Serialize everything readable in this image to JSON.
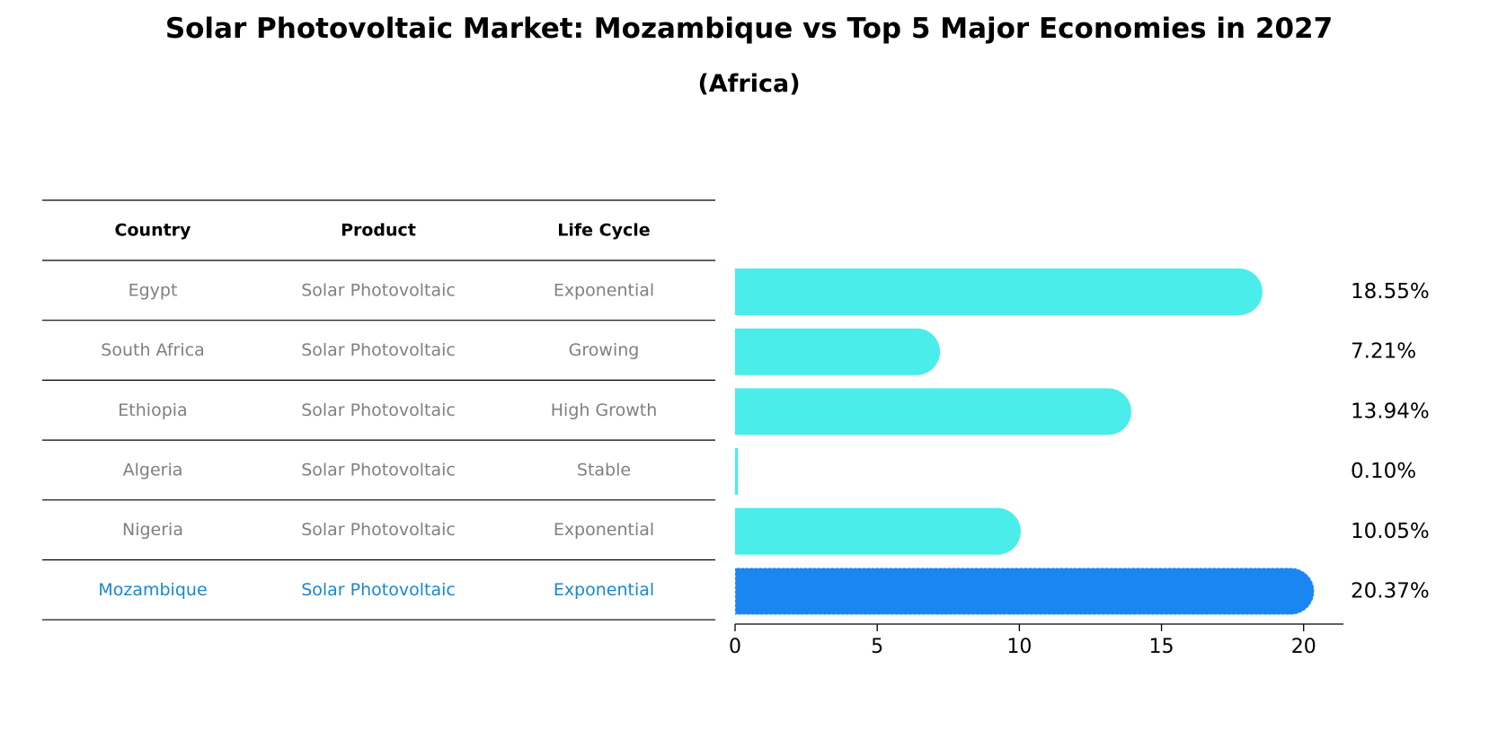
{
  "title": "Solar Photovoltaic Market: Mozambique vs Top 5 Major Economies in 2027",
  "subtitle": "(Africa)",
  "colors": {
    "bar": "#4BEDEA",
    "highlight_bar": "#1A86F2",
    "table_text": "#808080",
    "highlight_text": "#1A86D0",
    "rule": "#000000"
  },
  "table": {
    "headers": [
      "Country",
      "Product",
      "Life Cycle"
    ],
    "rows": [
      {
        "country": "Egypt",
        "product": "Solar Photovoltaic",
        "life_cycle": "Exponential",
        "highlight": false
      },
      {
        "country": "South Africa",
        "product": "Solar Photovoltaic",
        "life_cycle": "Growing",
        "highlight": false
      },
      {
        "country": "Ethiopia",
        "product": "Solar Photovoltaic",
        "life_cycle": "High Growth",
        "highlight": false
      },
      {
        "country": "Algeria",
        "product": "Solar Photovoltaic",
        "life_cycle": "Stable",
        "highlight": false
      },
      {
        "country": "Nigeria",
        "product": "Solar Photovoltaic",
        "life_cycle": "Exponential",
        "highlight": false
      },
      {
        "country": "Mozambique",
        "product": "Solar Photovoltaic",
        "life_cycle": "Exponential",
        "highlight": true
      }
    ]
  },
  "chart_data": {
    "type": "bar",
    "orientation": "horizontal",
    "title": "Solar Photovoltaic Market: Mozambique vs Top 5 Major Economies in 2027",
    "subtitle": "(Africa)",
    "categories": [
      "Egypt",
      "South Africa",
      "Ethiopia",
      "Algeria",
      "Nigeria",
      "Mozambique"
    ],
    "values": [
      18.55,
      7.21,
      13.94,
      0.1,
      10.05,
      20.37
    ],
    "value_labels": [
      "18.55%",
      "7.21%",
      "13.94%",
      "0.10%",
      "10.05%",
      "20.37%"
    ],
    "highlight": "Mozambique",
    "xlim": [
      0,
      21.4
    ],
    "xticks": [
      0,
      5,
      10,
      15,
      20
    ],
    "xlabel": "",
    "ylabel": "",
    "grid": false,
    "legend": "none"
  }
}
